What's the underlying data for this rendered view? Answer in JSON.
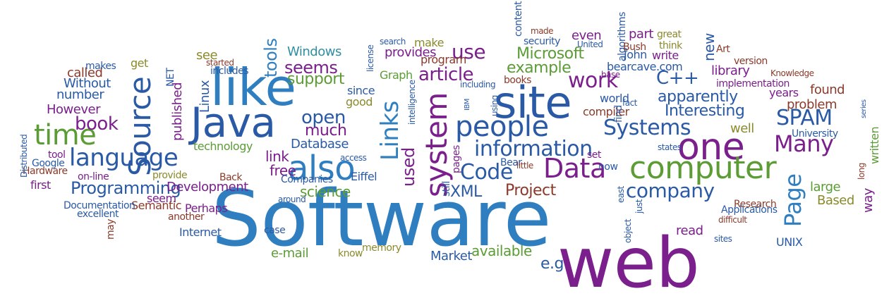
{
  "colors": {
    "blue": "#2f7fc0",
    "darkblue": "#2a5aa6",
    "purple": "#7a1f8c",
    "green": "#5b9c35",
    "olive": "#8a8a2c",
    "brown": "#8b3a2a",
    "teal": "#2f8fa0",
    "gray": "#6a6a6a"
  },
  "words": [
    {
      "text": "Software",
      "c": "blue"
    },
    {
      "text": "web",
      "c": "purple"
    },
    {
      "text": "like",
      "c": "blue"
    },
    {
      "text": "Java",
      "c": "darkblue"
    },
    {
      "text": "site",
      "c": "darkblue"
    },
    {
      "text": "also",
      "c": "blue"
    },
    {
      "text": "one",
      "c": "purple"
    },
    {
      "text": "computer",
      "c": "green"
    },
    {
      "text": "time",
      "c": "green"
    },
    {
      "text": "Source",
      "c": "darkblue"
    },
    {
      "text": "language",
      "c": "darkblue"
    },
    {
      "text": "people",
      "c": "darkblue"
    },
    {
      "text": "system",
      "c": "purple"
    },
    {
      "text": "Data",
      "c": "purple"
    },
    {
      "text": "information",
      "c": "darkblue"
    },
    {
      "text": "Code",
      "c": "darkblue"
    },
    {
      "text": "Links",
      "c": "blue"
    },
    {
      "text": "Many",
      "c": "purple"
    },
    {
      "text": "company",
      "c": "darkblue"
    },
    {
      "text": "Programming",
      "c": "darkblue"
    },
    {
      "text": "Page",
      "c": "blue"
    },
    {
      "text": "Systems",
      "c": "darkblue"
    },
    {
      "text": "work",
      "c": "purple"
    },
    {
      "text": "SPAM",
      "c": "darkblue"
    },
    {
      "text": "book",
      "c": "purple"
    },
    {
      "text": "open",
      "c": "darkblue"
    },
    {
      "text": "use",
      "c": "purple"
    },
    {
      "text": "article",
      "c": "purple"
    },
    {
      "text": "example",
      "c": "green"
    },
    {
      "text": "C++",
      "c": "darkblue"
    },
    {
      "text": "apparently",
      "c": "darkblue"
    },
    {
      "text": "Interesting",
      "c": "darkblue"
    },
    {
      "text": "Microsoft",
      "c": "green"
    },
    {
      "text": "seems",
      "c": "purple"
    },
    {
      "text": "support",
      "c": "green"
    },
    {
      "text": "Windows",
      "c": "teal"
    },
    {
      "text": "tools",
      "c": "blue"
    },
    {
      "text": "much",
      "c": "purple"
    },
    {
      "text": "Database",
      "c": "darkblue"
    },
    {
      "text": "link",
      "c": "purple"
    },
    {
      "text": "free",
      "c": "purple"
    },
    {
      "text": "science",
      "c": "green"
    },
    {
      "text": "XML",
      "c": "darkblue"
    },
    {
      "text": "Project",
      "c": "brown"
    },
    {
      "text": "used",
      "c": "purple"
    },
    {
      "text": "e.g",
      "c": "darkblue"
    },
    {
      "text": "available",
      "c": "green"
    },
    {
      "text": "Market",
      "c": "darkblue"
    },
    {
      "text": "However",
      "c": "purple"
    },
    {
      "text": "number",
      "c": "darkblue"
    },
    {
      "text": "Without",
      "c": "darkblue"
    },
    {
      "text": "called",
      "c": "brown"
    },
    {
      "text": "makes",
      "c": "darkblue"
    },
    {
      "text": "get",
      "c": "olive"
    },
    {
      "text": "see",
      "c": "olive"
    },
    {
      "text": "published",
      "c": "purple"
    },
    {
      "text": "Linux",
      "c": "darkblue"
    },
    {
      "text": "NET",
      "c": "darkblue"
    },
    {
      "text": "started",
      "c": "brown"
    },
    {
      "text": "includes",
      "c": "darkblue"
    },
    {
      "text": "good",
      "c": "olive"
    },
    {
      "text": "since",
      "c": "darkblue"
    },
    {
      "text": "technology",
      "c": "green"
    },
    {
      "text": "program",
      "c": "brown"
    },
    {
      "text": "provides",
      "c": "purple"
    },
    {
      "text": "make",
      "c": "olive"
    },
    {
      "text": "search",
      "c": "darkblue"
    },
    {
      "text": "content",
      "c": "darkblue"
    },
    {
      "text": "made",
      "c": "brown"
    },
    {
      "text": "security",
      "c": "darkblue"
    },
    {
      "text": "even",
      "c": "purple"
    },
    {
      "text": "algorithms",
      "c": "darkblue"
    },
    {
      "text": "part",
      "c": "purple"
    },
    {
      "text": "great",
      "c": "olive"
    },
    {
      "text": "Bush",
      "c": "brown"
    },
    {
      "text": "John",
      "c": "darkblue"
    },
    {
      "text": "write",
      "c": "purple"
    },
    {
      "text": "think",
      "c": "olive"
    },
    {
      "text": "United",
      "c": "darkblue"
    },
    {
      "text": "bearcave.com",
      "c": "darkblue"
    },
    {
      "text": "new",
      "c": "darkblue"
    },
    {
      "text": "Art",
      "c": "brown"
    },
    {
      "text": "version",
      "c": "brown"
    },
    {
      "text": "library",
      "c": "purple"
    },
    {
      "text": "Knowledge",
      "c": "brown"
    },
    {
      "text": "implementation",
      "c": "purple"
    },
    {
      "text": "years",
      "c": "purple"
    },
    {
      "text": "found",
      "c": "brown"
    },
    {
      "text": "problem",
      "c": "brown"
    },
    {
      "text": "well",
      "c": "olive"
    },
    {
      "text": "University",
      "c": "darkblue"
    },
    {
      "text": "series",
      "c": "darkblue"
    },
    {
      "text": "written",
      "c": "green"
    },
    {
      "text": "long",
      "c": "brown"
    },
    {
      "text": "large",
      "c": "green"
    },
    {
      "text": "Based",
      "c": "olive"
    },
    {
      "text": "way",
      "c": "purple"
    },
    {
      "text": "Research",
      "c": "brown"
    },
    {
      "text": "Applications",
      "c": "darkblue"
    },
    {
      "text": "difficult",
      "c": "brown"
    },
    {
      "text": "sites",
      "c": "darkblue"
    },
    {
      "text": "read",
      "c": "purple"
    },
    {
      "text": "UNIX",
      "c": "darkblue"
    },
    {
      "text": "world",
      "c": "darkblue"
    },
    {
      "text": "compiler",
      "c": "brown"
    },
    {
      "text": "fact",
      "c": "darkblue"
    },
    {
      "text": "base",
      "c": "purple"
    },
    {
      "text": "find",
      "c": "darkblue"
    },
    {
      "text": "set",
      "c": "purple"
    },
    {
      "text": "now",
      "c": "darkblue"
    },
    {
      "text": "states",
      "c": "darkblue"
    },
    {
      "text": "east",
      "c": "darkblue"
    },
    {
      "text": "just",
      "c": "darkblue"
    },
    {
      "text": "object",
      "c": "darkblue"
    },
    {
      "text": "books",
      "c": "brown"
    },
    {
      "text": "including",
      "c": "darkblue"
    },
    {
      "text": "using",
      "c": "darkblue"
    },
    {
      "text": "IBM",
      "c": "darkblue"
    },
    {
      "text": "Bear",
      "c": "darkblue"
    },
    {
      "text": "little",
      "c": "brown"
    },
    {
      "text": "pages",
      "c": "purple"
    },
    {
      "text": "intelligence",
      "c": "darkblue"
    },
    {
      "text": "still",
      "c": "darkblue"
    },
    {
      "text": "Graph",
      "c": "green"
    },
    {
      "text": "license",
      "c": "darkblue"
    },
    {
      "text": "access",
      "c": "darkblue"
    },
    {
      "text": "Eiffel",
      "c": "darkblue"
    },
    {
      "text": "Companies",
      "c": "darkblue"
    },
    {
      "text": "around",
      "c": "darkblue"
    },
    {
      "text": "Development",
      "c": "purple"
    },
    {
      "text": "seem",
      "c": "purple"
    },
    {
      "text": "Semantic",
      "c": "brown"
    },
    {
      "text": "Perhaps",
      "c": "purple"
    },
    {
      "text": "another",
      "c": "brown"
    },
    {
      "text": "Internet",
      "c": "darkblue"
    },
    {
      "text": "case",
      "c": "darkblue"
    },
    {
      "text": "e-mail",
      "c": "green"
    },
    {
      "text": "know",
      "c": "olive"
    },
    {
      "text": "memory",
      "c": "olive"
    },
    {
      "text": "Back",
      "c": "brown"
    },
    {
      "text": "provide",
      "c": "olive"
    },
    {
      "text": "on-line",
      "c": "purple"
    },
    {
      "text": "Hardware",
      "c": "brown"
    },
    {
      "text": "Google",
      "c": "darkblue"
    },
    {
      "text": "tool",
      "c": "purple"
    },
    {
      "text": "Distributed",
      "c": "darkblue"
    },
    {
      "text": "first",
      "c": "purple"
    },
    {
      "text": "Documentation",
      "c": "darkblue"
    },
    {
      "text": "excellent",
      "c": "darkblue"
    },
    {
      "text": "may",
      "c": "brown"
    }
  ]
}
